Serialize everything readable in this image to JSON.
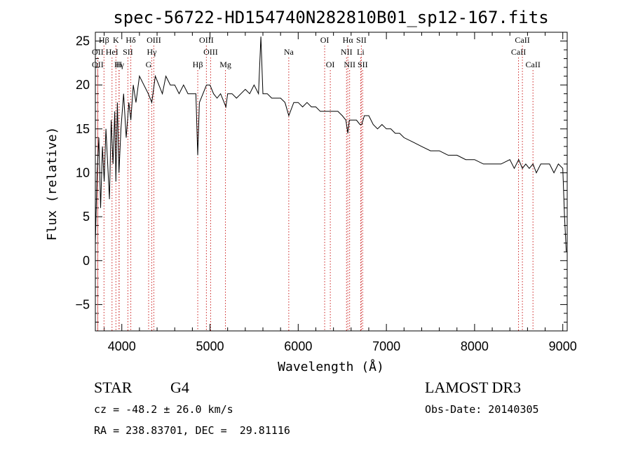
{
  "chart_data": {
    "type": "line",
    "title": "spec-56722-HD154740N282810B01_sp12-167.fits",
    "xlabel": "Wavelength (Å)",
    "ylabel": "Flux (relative)",
    "xlim": [
      3700,
      9050
    ],
    "ylim": [
      -8,
      26
    ],
    "xticks": [
      4000,
      5000,
      6000,
      7000,
      8000,
      9000
    ],
    "yticks": [
      -5,
      0,
      5,
      10,
      15,
      20,
      25
    ],
    "grid": false,
    "series": [
      {
        "name": "spectrum",
        "x": [
          3700,
          3720,
          3740,
          3760,
          3780,
          3800,
          3820,
          3840,
          3860,
          3880,
          3900,
          3920,
          3933,
          3950,
          3968,
          3990,
          4020,
          4050,
          4080,
          4102,
          4130,
          4160,
          4200,
          4250,
          4300,
          4340,
          4380,
          4420,
          4460,
          4500,
          4550,
          4600,
          4650,
          4700,
          4750,
          4800,
          4840,
          4861,
          4880,
          4920,
          4960,
          5000,
          5040,
          5080,
          5120,
          5160,
          5180,
          5200,
          5250,
          5300,
          5350,
          5400,
          5450,
          5500,
          5550,
          5577,
          5600,
          5650,
          5700,
          5750,
          5800,
          5850,
          5893,
          5950,
          6000,
          6050,
          6100,
          6150,
          6200,
          6250,
          6300,
          6350,
          6400,
          6450,
          6500,
          6540,
          6563,
          6580,
          6620,
          6660,
          6700,
          6720,
          6750,
          6800,
          6850,
          6900,
          6950,
          7000,
          7050,
          7100,
          7150,
          7200,
          7300,
          7400,
          7500,
          7600,
          7700,
          7800,
          7900,
          8000,
          8100,
          8200,
          8300,
          8400,
          8450,
          8500,
          8542,
          8580,
          8620,
          8662,
          8700,
          8750,
          8800,
          8850,
          8900,
          8950,
          9000,
          9020,
          9040
        ],
        "y": [
          2,
          10,
          14,
          6,
          13,
          9,
          15,
          11,
          7,
          16,
          11,
          17,
          9,
          18,
          10,
          15,
          19,
          14,
          18,
          16,
          20,
          18,
          21,
          20,
          19,
          18,
          21,
          20,
          19,
          21,
          20,
          20,
          19,
          20,
          19,
          19,
          19,
          12,
          18,
          19,
          20,
          20,
          19,
          18.5,
          19,
          18,
          17.5,
          19,
          19,
          18.5,
          19,
          19.5,
          19,
          20,
          19,
          25.5,
          19,
          19,
          18.5,
          18.5,
          18.5,
          18,
          16.5,
          18,
          18,
          17.5,
          18,
          17.5,
          17.5,
          17,
          17,
          17,
          17,
          17,
          16.5,
          16,
          14.5,
          16,
          16,
          16,
          15.5,
          15.5,
          16.5,
          16.5,
          15.5,
          15,
          15.5,
          15,
          15,
          14.5,
          14.5,
          14,
          13.5,
          13,
          12.5,
          12.5,
          12,
          12,
          11.5,
          11.5,
          11,
          11,
          11,
          11.5,
          10.5,
          11.5,
          10.5,
          11,
          10.5,
          11,
          10,
          11,
          11,
          11,
          10,
          11,
          10.5,
          5,
          1
        ]
      }
    ],
    "lines": [
      {
        "label": "Hβ",
        "wave": 3798
      },
      {
        "label": "K",
        "wave": 3933
      },
      {
        "label": "Hδ",
        "wave": 4102
      },
      {
        "label": "OII",
        "wave": 3727
      },
      {
        "label": "HeI",
        "wave": 3889
      },
      {
        "label": "SII",
        "wave": 4069
      },
      {
        "label": "OII",
        "wave": 3727
      },
      {
        "label": "Hγ",
        "wave": 3970
      },
      {
        "label": "H",
        "wave": 3968
      },
      {
        "label": "OIII",
        "wave": 4363
      },
      {
        "label": "Hγ",
        "wave": 4340
      },
      {
        "label": "G",
        "wave": 4304
      },
      {
        "label": "OIII",
        "wave": 4959
      },
      {
        "label": "OIII",
        "wave": 5007
      },
      {
        "label": "Hβ",
        "wave": 4861
      },
      {
        "label": "Mg",
        "wave": 5175
      },
      {
        "label": "Na",
        "wave": 5893
      },
      {
        "label": "OI",
        "wave": 6300
      },
      {
        "label": "OI",
        "wave": 6364
      },
      {
        "label": "Hα",
        "wave": 6563
      },
      {
        "label": "SII",
        "wave": 6716
      },
      {
        "label": "NII",
        "wave": 6548
      },
      {
        "label": "Li",
        "wave": 6708
      },
      {
        "label": "NII",
        "wave": 6583
      },
      {
        "label": "SII",
        "wave": 6731
      },
      {
        "label": "CaII",
        "wave": 8542
      },
      {
        "label": "CaII",
        "wave": 8498
      },
      {
        "label": "CaII",
        "wave": 8662
      }
    ]
  },
  "info": {
    "class": "STAR",
    "subclass": "G4",
    "survey": "LAMOST DR3",
    "cz": "cz = -48.2 ± 26.0 km/s",
    "obs_date": "Obs-Date: 20140305",
    "coords": "RA = 238.83701, DEC =  29.81116"
  }
}
